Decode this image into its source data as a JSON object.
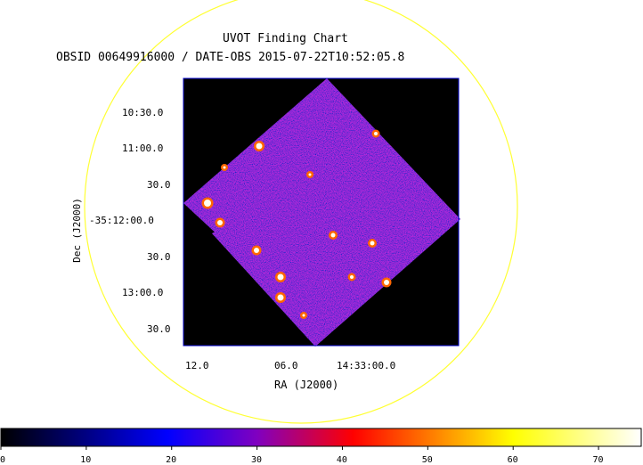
{
  "chart": {
    "title": "UVOT Finding Chart",
    "subtitle": "OBSID 00649916000 / DATE-OBS 2015-07-22T10:52:05.8",
    "xlabel": "RA (J2000)",
    "ylabel": "Dec (J2000)",
    "ra_ticks": [
      "12.0",
      "06.0",
      "14:33:00.0"
    ],
    "dec_ticks": [
      "10:30.0",
      "11:00.0",
      "30.0",
      "-35:12:00.0",
      "30.0",
      "13:00.0",
      "30.0"
    ],
    "colorbar_ticks": [
      "0",
      "10",
      "20",
      "30",
      "40",
      "50",
      "60",
      "70"
    ]
  },
  "colors": {
    "circle": "#ffff33",
    "frame": "#0000cc",
    "background": "#000000",
    "field_base": "#3030b8",
    "colorbar": [
      "#000000",
      "#0000ff",
      "#8000c0",
      "#ff0000",
      "#ffff00",
      "#ffffff"
    ]
  },
  "chart_data": {
    "type": "heatmap",
    "title": "UVOT Finding Chart",
    "xlabel": "RA (J2000)",
    "ylabel": "Dec (J2000)",
    "x_ticks": [
      "12.0",
      "06.0",
      "14:33:00.0"
    ],
    "y_ticks": [
      "10:30.0",
      "11:00.0",
      "30.0",
      "-35:12:00.0",
      "30.0",
      "13:00.0",
      "30.0"
    ],
    "colorbar_range": [
      0,
      75
    ],
    "colorbar_ticks": [
      0,
      10,
      20,
      30,
      40,
      50,
      60,
      70
    ]
  }
}
